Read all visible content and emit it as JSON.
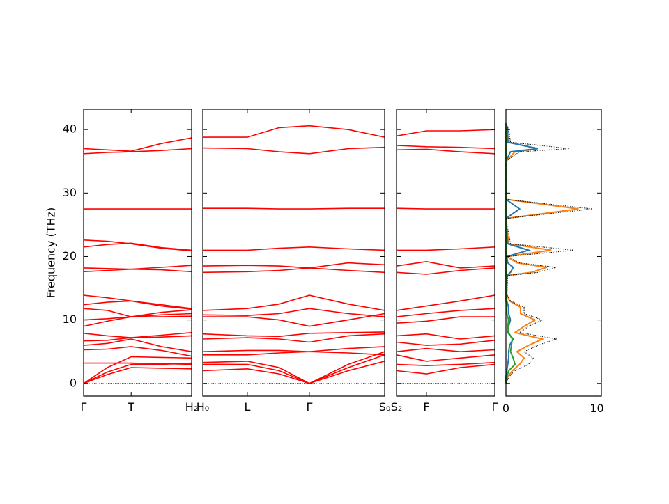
{
  "chart_data": {
    "type": "line",
    "ylabel": "Frequency (THz)",
    "ylim": [
      -2,
      43.2
    ],
    "yticks": [
      0,
      10,
      20,
      30,
      40
    ],
    "color": "#ff0000",
    "zero_line_color": "#0000ff",
    "panels": [
      {
        "type": "line",
        "xlim": [
          0,
          1
        ],
        "xticks": [
          {
            "value": 0,
            "label": "Γ"
          },
          {
            "value": 0.44,
            "label": "T"
          },
          {
            "value": 1,
            "label": "H₂"
          }
        ],
        "x": [
          0,
          0.22,
          0.44,
          0.72,
          1
        ],
        "series": [
          {
            "values": [
              0,
              1.4,
              2.5,
              2.4,
              2.3
            ]
          },
          {
            "values": [
              0,
              1.8,
              3.0,
              3.0,
              3.2
            ]
          },
          {
            "values": [
              0,
              2.5,
              4.2,
              4.1,
              4.0
            ]
          },
          {
            "values": [
              3.2,
              3.2,
              3.2,
              3.1,
              3.0
            ]
          },
          {
            "values": [
              5.3,
              5.4,
              5.8,
              5.2,
              4.3
            ]
          },
          {
            "values": [
              6.0,
              6.3,
              7.0,
              5.8,
              5.0
            ]
          },
          {
            "values": [
              6.7,
              6.8,
              7.2,
              7.3,
              7.5
            ]
          },
          {
            "values": [
              7.9,
              7.5,
              7.2,
              7.6,
              8.0
            ]
          },
          {
            "values": [
              9.0,
              9.8,
              10.5,
              10.5,
              10.6
            ]
          },
          {
            "values": [
              10.0,
              10.2,
              10.5,
              10.8,
              11.0
            ]
          },
          {
            "values": [
              11.8,
              11.5,
              10.5,
              11.2,
              11.6
            ]
          },
          {
            "values": [
              12.4,
              12.8,
              13.0,
              12.2,
              11.7
            ]
          },
          {
            "values": [
              13.9,
              13.5,
              13.0,
              12.4,
              11.8
            ]
          },
          {
            "values": [
              17.6,
              17.8,
              18.0,
              17.9,
              17.6
            ]
          },
          {
            "values": [
              18.2,
              18.1,
              18.0,
              18.3,
              18.6
            ]
          },
          {
            "values": [
              21.5,
              21.9,
              22.1,
              21.4,
              21.0
            ]
          },
          {
            "values": [
              22.6,
              22.4,
              22.0,
              21.3,
              20.9
            ]
          },
          {
            "values": [
              27.5,
              27.5,
              27.5,
              27.5,
              27.5
            ]
          },
          {
            "values": [
              36.2,
              36.4,
              36.5,
              36.7,
              37.0
            ]
          },
          {
            "values": [
              37.0,
              36.8,
              36.6,
              37.8,
              38.7
            ]
          }
        ]
      },
      {
        "type": "line",
        "xlim": [
          0,
          1
        ],
        "xticks": [
          {
            "value": 0,
            "label": "H₀"
          },
          {
            "value": 0.245,
            "label": "L"
          },
          {
            "value": 0.586,
            "label": "Γ"
          },
          {
            "value": 1,
            "label": "S₀"
          }
        ],
        "x": [
          0,
          0.245,
          0.42,
          0.586,
          0.8,
          1
        ],
        "series": [
          {
            "values": [
              2.0,
              2.3,
              1.5,
              0,
              2.0,
              3.5
            ]
          },
          {
            "values": [
              3.0,
              3.0,
              2.0,
              0,
              2.5,
              4.5
            ]
          },
          {
            "values": [
              3.3,
              3.5,
              2.5,
              0,
              3.0,
              5.0
            ]
          },
          {
            "values": [
              4.5,
              4.5,
              4.8,
              5.0,
              4.8,
              4.5
            ]
          },
          {
            "values": [
              5.0,
              5.2,
              5.2,
              5.0,
              5.5,
              5.8
            ]
          },
          {
            "values": [
              7.0,
              7.2,
              7.0,
              6.5,
              7.5,
              7.8
            ]
          },
          {
            "values": [
              7.8,
              7.5,
              7.4,
              7.9,
              8.0,
              8.1
            ]
          },
          {
            "values": [
              10.5,
              10.5,
              10.0,
              9.0,
              10.0,
              11.0
            ]
          },
          {
            "values": [
              10.8,
              10.7,
              11.0,
              11.8,
              11.0,
              10.5
            ]
          },
          {
            "values": [
              11.5,
              11.8,
              12.5,
              13.9,
              12.5,
              11.5
            ]
          },
          {
            "values": [
              17.5,
              17.6,
              17.8,
              18.2,
              17.8,
              17.5
            ]
          },
          {
            "values": [
              18.5,
              18.6,
              18.5,
              18.2,
              19.0,
              18.7
            ]
          },
          {
            "values": [
              21.0,
              21.0,
              21.3,
              21.5,
              21.2,
              21.0
            ]
          },
          {
            "values": [
              27.6,
              27.6,
              27.5,
              27.5,
              27.6,
              27.6
            ]
          },
          {
            "values": [
              37.1,
              37.0,
              36.5,
              36.2,
              37.0,
              37.2
            ]
          },
          {
            "values": [
              38.8,
              38.8,
              40.3,
              40.6,
              40.0,
              38.8
            ]
          }
        ]
      },
      {
        "type": "line",
        "xlim": [
          0,
          1
        ],
        "xticks": [
          {
            "value": 0,
            "label": "S₂"
          },
          {
            "value": 0.305,
            "label": "F"
          },
          {
            "value": 1,
            "label": "Γ"
          }
        ],
        "x": [
          0,
          0.305,
          0.65,
          1
        ],
        "series": [
          {
            "values": [
              2.0,
              1.5,
              2.5,
              3.0
            ]
          },
          {
            "values": [
              3.0,
              2.8,
              3.0,
              3.3
            ]
          },
          {
            "values": [
              4.5,
              3.5,
              4.0,
              4.5
            ]
          },
          {
            "values": [
              5.0,
              5.5,
              5.0,
              5.3
            ]
          },
          {
            "values": [
              6.5,
              6.0,
              6.2,
              6.8
            ]
          },
          {
            "values": [
              7.5,
              7.8,
              7.0,
              7.5
            ]
          },
          {
            "values": [
              9.5,
              9.8,
              10.5,
              10.5
            ]
          },
          {
            "values": [
              10.5,
              11.0,
              11.5,
              11.8
            ]
          },
          {
            "values": [
              11.5,
              12.2,
              13.0,
              13.9
            ]
          },
          {
            "values": [
              17.5,
              17.2,
              17.8,
              18.2
            ]
          },
          {
            "values": [
              18.5,
              19.2,
              18.2,
              18.5
            ]
          },
          {
            "values": [
              21.0,
              21.0,
              21.2,
              21.5
            ]
          },
          {
            "values": [
              27.6,
              27.5,
              27.5,
              27.5
            ]
          },
          {
            "values": [
              36.8,
              36.9,
              36.5,
              36.2
            ]
          },
          {
            "values": [
              37.5,
              37.3,
              37.2,
              37.0
            ]
          },
          {
            "values": [
              39.0,
              39.8,
              39.8,
              40.0
            ]
          }
        ]
      }
    ],
    "dos": {
      "type": "line",
      "xlim": [
        0,
        10.5
      ],
      "xticks": [
        0,
        10
      ],
      "y": [
        0,
        1,
        2,
        3,
        4,
        5,
        6,
        7,
        8,
        9,
        10,
        11,
        12,
        13,
        14,
        17,
        17.5,
        18.3,
        19,
        20,
        21,
        22,
        26,
        27.5,
        29,
        35,
        36.5,
        37,
        38,
        40,
        41
      ],
      "series": [
        {
          "color": "#ff7f0e",
          "values": [
            0,
            0.2,
            0.7,
            1.5,
            2.0,
            1.2,
            2.5,
            4.0,
            1.0,
            2.0,
            3.2,
            1.6,
            1.6,
            0.4,
            0.1,
            0.1,
            2.8,
            4.5,
            1.2,
            0.1,
            5.0,
            0.3,
            0,
            8.0,
            0,
            0,
            1.0,
            3.5,
            0.3,
            0.1,
            0
          ]
        },
        {
          "color": "#1f77b4",
          "values": [
            0,
            0,
            0.1,
            0.2,
            0.3,
            0.3,
            0.4,
            0.8,
            0.2,
            0.3,
            0.5,
            0.3,
            0.3,
            0.1,
            0,
            0.1,
            0.5,
            0.8,
            0.2,
            0.1,
            2.5,
            0.2,
            0,
            1.5,
            0,
            0,
            0.5,
            3.5,
            0.2,
            0.2,
            0
          ]
        },
        {
          "color": "#2ca02c",
          "values": [
            0,
            0.1,
            0.3,
            1.0,
            0.8,
            0.5,
            0.6,
            0.7,
            0.3,
            0.2,
            0.3,
            0.1,
            0.1,
            0,
            0,
            0,
            0,
            0,
            0,
            0,
            0,
            0,
            0,
            0,
            0,
            0,
            0,
            0,
            0,
            0,
            0
          ]
        },
        {
          "color": "#000000",
          "style": "dotted",
          "values": [
            0,
            0.3,
            1.0,
            2.5,
            3.0,
            2.0,
            3.5,
            5.5,
            1.5,
            2.5,
            4.0,
            2.0,
            2.0,
            0.5,
            0.1,
            0.2,
            3.5,
            5.5,
            1.5,
            0.2,
            7.5,
            0.5,
            0,
            9.5,
            0,
            0,
            1.5,
            7.0,
            0.5,
            0.3,
            0
          ]
        }
      ]
    }
  }
}
